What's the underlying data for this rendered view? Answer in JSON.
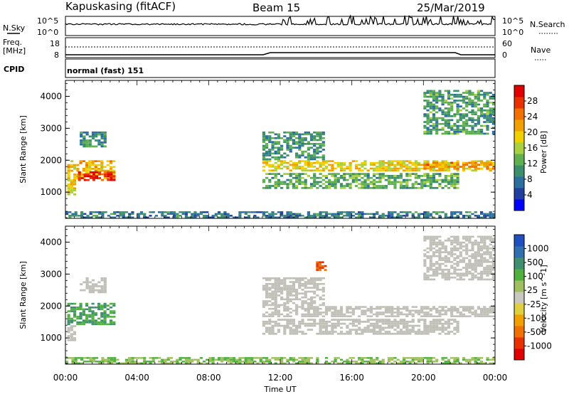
{
  "header": {
    "station": "Kapuskasing (fitACF)",
    "beam": "Beam 15",
    "date": "25/Mar/2019"
  },
  "top_panels": {
    "nsky_label": "N.Sky",
    "nsky_ticks": [
      "10^5",
      "10^0"
    ],
    "nsearch_label": "N.Search",
    "nsearch_ticks": [
      "10^5",
      "10^0"
    ],
    "freq_label_1": "Freq.",
    "freq_label_2": "[MHz]",
    "freq_ticks": [
      "18",
      "8"
    ],
    "nave_label": "Nave",
    "nave_ticks": [
      "60",
      "0"
    ],
    "cpid_label": "CPID",
    "cpid_text": "normal (fast) 151"
  },
  "colors": {
    "power_scale": [
      "#0000ff",
      "#2040a0",
      "#2c6e9e",
      "#3c8f6a",
      "#60b050",
      "#a8d040",
      "#f0d000",
      "#f0a000",
      "#f07000",
      "#e83000",
      "#e00000"
    ],
    "velocity_scale": [
      "#2050c0",
      "#3070b0",
      "#409070",
      "#50b040",
      "#a0c060",
      "#c8c8c0",
      "#e0d040",
      "#f0a000",
      "#f07000",
      "#e83000",
      "#e00000"
    ],
    "ground_scatter": "#c0c0b8"
  },
  "chart_data": [
    {
      "type": "heatmap",
      "name": "power",
      "xlabel": "",
      "ylabel": "Slant Range [km]",
      "x_range": [
        "00:00",
        "24:00"
      ],
      "ylim": [
        180,
        4500
      ],
      "yticks": [
        "1000",
        "2000",
        "3000",
        "4000"
      ],
      "colorbar_label": "Power [dB]",
      "colorbar_ticks": [
        "4",
        "8",
        "12",
        "16",
        "20",
        "24",
        "28"
      ],
      "colorbar_range": [
        0,
        30
      ],
      "regions": [
        {
          "t0": 0.1,
          "t1": 2.8,
          "r0": 1400,
          "r1": 2000,
          "value": 20
        },
        {
          "t0": 0.7,
          "t1": 2.8,
          "r0": 1350,
          "r1": 1650,
          "value": 28
        },
        {
          "t0": 0.1,
          "t1": 0.6,
          "r0": 900,
          "r1": 1400,
          "value": 18
        },
        {
          "t0": 0.8,
          "t1": 2.3,
          "r0": 2400,
          "r1": 2900,
          "value": 9
        },
        {
          "t0": 11.0,
          "t1": 24.0,
          "r0": 1650,
          "r1": 2000,
          "value": 18
        },
        {
          "t0": 11.0,
          "t1": 22.0,
          "r0": 1100,
          "r1": 1600,
          "value": 11
        },
        {
          "t0": 11.0,
          "t1": 14.5,
          "r0": 2000,
          "r1": 2900,
          "value": 9
        },
        {
          "t0": 20.0,
          "t1": 24.0,
          "r0": 1700,
          "r1": 1950,
          "value": 22
        },
        {
          "t0": 20.0,
          "t1": 24.0,
          "r0": 2800,
          "r1": 4200,
          "value": 10
        },
        {
          "t0": 0.0,
          "t1": 24.0,
          "r0": 180,
          "r1": 400,
          "value": 7
        }
      ]
    },
    {
      "type": "heatmap",
      "name": "velocity",
      "xlabel": "Time UT",
      "ylabel": "Slant Range [km]",
      "x_range": [
        "00:00",
        "24:00"
      ],
      "xticks": [
        "00:00",
        "04:00",
        "08:00",
        "12:00",
        "16:00",
        "20:00",
        "00:00"
      ],
      "ylim": [
        180,
        4500
      ],
      "yticks": [
        "1000",
        "2000",
        "3000",
        "4000"
      ],
      "colorbar_label": "Velocity [m s^-1]",
      "colorbar_ticks": [
        "1000",
        "500",
        "100",
        "25",
        "-25",
        "-100",
        "-500",
        "-1000"
      ],
      "regions": [
        {
          "t0": 0.1,
          "t1": 2.8,
          "r0": 1400,
          "r1": 2100,
          "value": 100
        },
        {
          "t0": 0.1,
          "t1": 0.6,
          "r0": 900,
          "r1": 1400,
          "value": 0
        },
        {
          "t0": 0.8,
          "t1": 2.3,
          "r0": 2400,
          "r1": 2900,
          "value": 0
        },
        {
          "t0": 11.0,
          "t1": 24.0,
          "r0": 1650,
          "r1": 2000,
          "value": 0
        },
        {
          "t0": 11.0,
          "t1": 22.0,
          "r0": 1100,
          "r1": 1600,
          "value": 0
        },
        {
          "t0": 11.0,
          "t1": 14.5,
          "r0": 2000,
          "r1": 2900,
          "value": 0
        },
        {
          "t0": 14.0,
          "t1": 14.6,
          "r0": 3100,
          "r1": 3400,
          "value": -500
        },
        {
          "t0": 20.0,
          "t1": 24.0,
          "r0": 2800,
          "r1": 4200,
          "value": 0
        },
        {
          "t0": 0.0,
          "t1": 24.0,
          "r0": 180,
          "r1": 400,
          "value": 20
        }
      ]
    }
  ]
}
